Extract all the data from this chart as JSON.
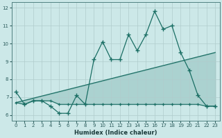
{
  "xlabel": "Humidex (Indice chaleur)",
  "x_values": [
    0,
    1,
    2,
    3,
    4,
    5,
    6,
    7,
    8,
    9,
    10,
    11,
    12,
    13,
    14,
    15,
    16,
    17,
    18,
    19,
    20,
    21,
    22,
    23
  ],
  "main_line": [
    7.3,
    6.6,
    6.8,
    6.8,
    6.5,
    6.1,
    6.1,
    7.1,
    6.6,
    9.1,
    10.1,
    9.1,
    9.1,
    10.5,
    9.6,
    10.5,
    11.8,
    10.8,
    11.0,
    9.5,
    8.5,
    7.1,
    6.5,
    6.5
  ],
  "lower_line": [
    6.7,
    6.6,
    6.8,
    6.8,
    6.8,
    6.6,
    6.6,
    6.6,
    6.6,
    6.6,
    6.6,
    6.6,
    6.6,
    6.6,
    6.6,
    6.6,
    6.6,
    6.6,
    6.6,
    6.6,
    6.6,
    6.6,
    6.5,
    6.5
  ],
  "trend_x": [
    0,
    23
  ],
  "trend_y": [
    6.7,
    9.5
  ],
  "bg_color": "#cce8e8",
  "grid_color": "#b0cccc",
  "line_color": "#1a6e64",
  "fill_color": "#1a6e64",
  "ylim": [
    5.7,
    12.3
  ],
  "xlim": [
    -0.5,
    23.5
  ],
  "yticks": [
    6,
    7,
    8,
    9,
    10,
    11,
    12
  ],
  "xticks": [
    0,
    1,
    2,
    3,
    4,
    5,
    6,
    7,
    8,
    9,
    10,
    11,
    12,
    13,
    14,
    15,
    16,
    17,
    18,
    19,
    20,
    21,
    22,
    23
  ]
}
